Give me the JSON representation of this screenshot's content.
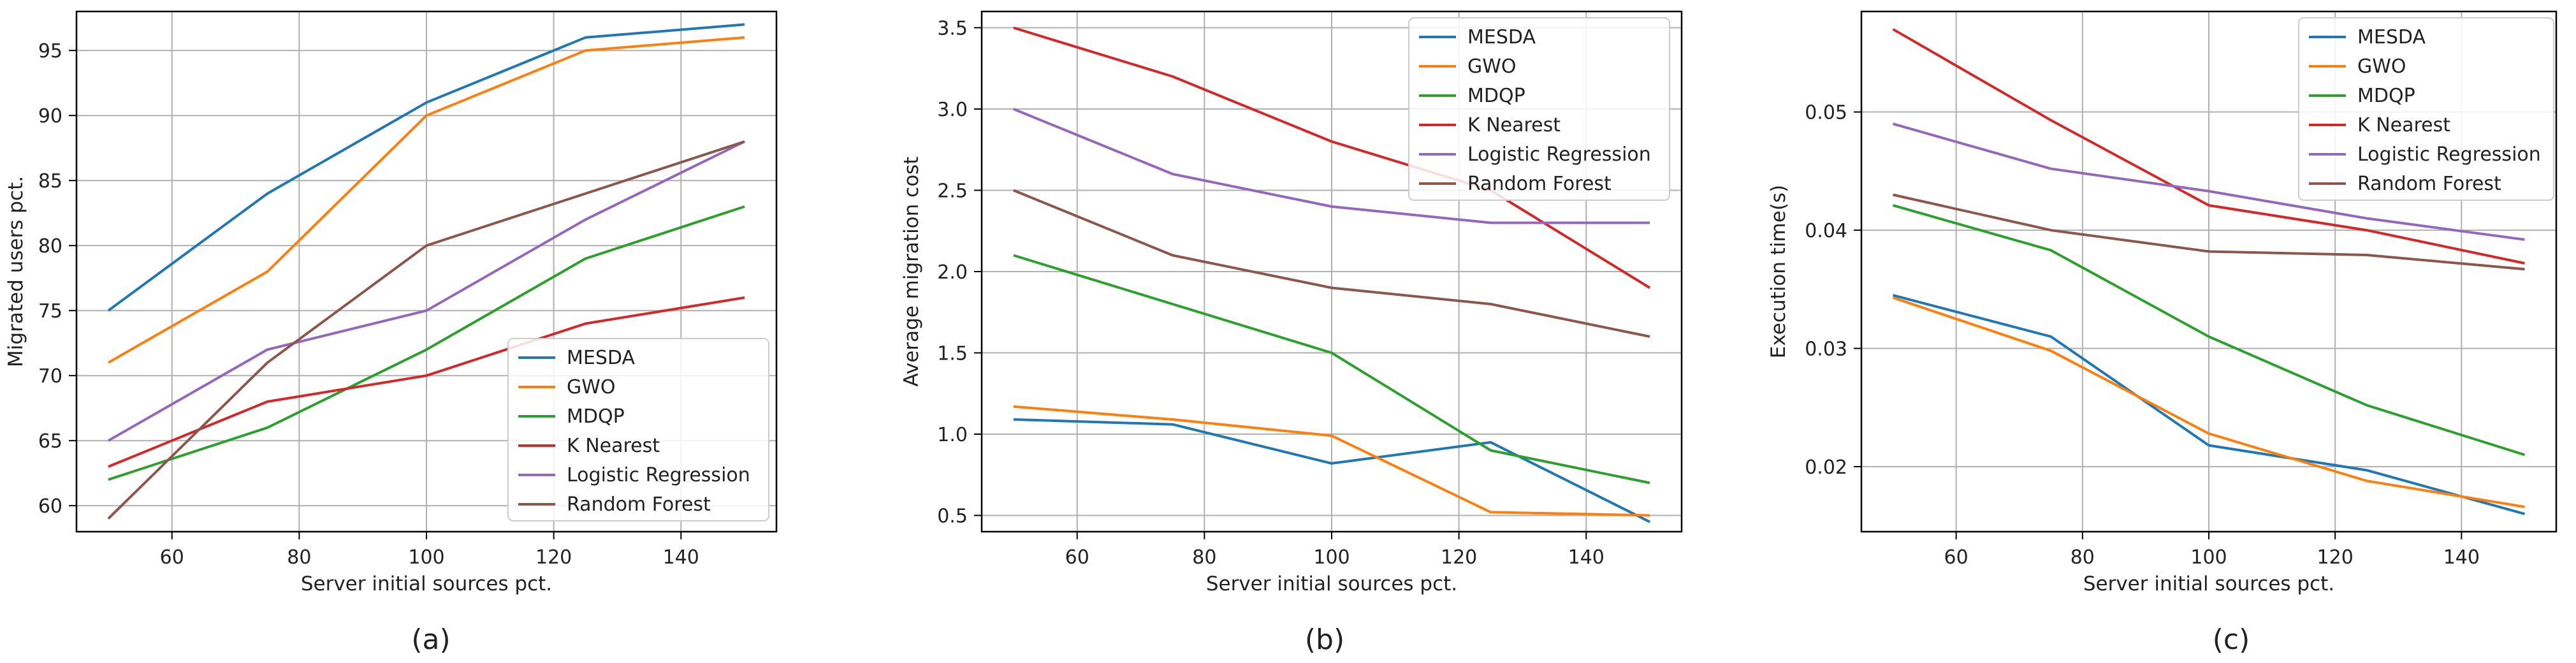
{
  "chart_data": [
    {
      "type": "line",
      "caption": "(a)",
      "xlabel": "Server initial sources pct.",
      "ylabel": "Migrated users pct.",
      "xlim": [
        45,
        155
      ],
      "ylim": [
        58,
        98
      ],
      "xticks": [
        60,
        80,
        100,
        120,
        140
      ],
      "yticks": [
        60,
        65,
        70,
        75,
        80,
        85,
        90,
        95
      ],
      "ytick_labels": [
        "60",
        "65",
        "70",
        "75",
        "80",
        "85",
        "90",
        "95"
      ],
      "grid": true,
      "legend_position": "lower-right",
      "x": [
        50,
        75,
        100,
        125,
        150
      ],
      "series": [
        {
          "name": "MESDA",
          "color": "#1f77b4",
          "values": [
            75,
            84,
            91,
            96,
            97
          ]
        },
        {
          "name": "GWO",
          "color": "#ff7f0e",
          "values": [
            71,
            78,
            90,
            95,
            96
          ]
        },
        {
          "name": "MDQP",
          "color": "#2ca02c",
          "values": [
            62,
            66,
            72,
            79,
            83
          ]
        },
        {
          "name": "K Nearest",
          "color": "#d62728",
          "values": [
            63,
            68,
            70,
            74,
            76
          ]
        },
        {
          "name": "Logistic Regression",
          "color": "#9467bd",
          "values": [
            65,
            72,
            75,
            82,
            88
          ]
        },
        {
          "name": "Random Forest",
          "color": "#8c564b",
          "values": [
            59,
            71,
            80,
            84,
            88
          ]
        }
      ]
    },
    {
      "type": "line",
      "caption": "(b)",
      "xlabel": "Server initial sources pct.",
      "ylabel": "Average migration cost",
      "xlim": [
        45,
        155
      ],
      "ylim": [
        0.4,
        3.6
      ],
      "xticks": [
        60,
        80,
        100,
        120,
        140
      ],
      "yticks": [
        0.5,
        1.0,
        1.5,
        2.0,
        2.5,
        3.0,
        3.5
      ],
      "ytick_labels": [
        "0.5",
        "1.0",
        "1.5",
        "2.0",
        "2.5",
        "3.0",
        "3.5"
      ],
      "grid": true,
      "legend_position": "top-right",
      "x": [
        50,
        75,
        100,
        125,
        150
      ],
      "series": [
        {
          "name": "MESDA",
          "color": "#1f77b4",
          "values": [
            1.09,
            1.06,
            0.82,
            0.95,
            0.46
          ]
        },
        {
          "name": "GWO",
          "color": "#ff7f0e",
          "values": [
            1.17,
            1.09,
            0.99,
            0.52,
            0.5
          ]
        },
        {
          "name": "MDQP",
          "color": "#2ca02c",
          "values": [
            2.1,
            1.8,
            1.5,
            0.9,
            0.7
          ]
        },
        {
          "name": "K Nearest",
          "color": "#d62728",
          "values": [
            3.5,
            3.2,
            2.8,
            2.5,
            1.9
          ]
        },
        {
          "name": "Logistic Regression",
          "color": "#9467bd",
          "values": [
            3.0,
            2.6,
            2.4,
            2.3,
            2.3
          ]
        },
        {
          "name": "Random Forest",
          "color": "#8c564b",
          "values": [
            2.5,
            2.1,
            1.9,
            1.8,
            1.6
          ]
        }
      ]
    },
    {
      "type": "line",
      "caption": "(c)",
      "xlabel": "Server initial sources pct.",
      "ylabel": "Execution time(s)",
      "xlim": [
        45,
        155
      ],
      "ylim": [
        0.0145,
        0.0585
      ],
      "xticks": [
        60,
        80,
        100,
        120,
        140
      ],
      "yticks": [
        0.02,
        0.03,
        0.04,
        0.05
      ],
      "ytick_labels": [
        "0.02",
        "0.03",
        "0.04",
        "0.05"
      ],
      "grid": true,
      "legend_position": "top-right",
      "x": [
        50,
        75,
        100,
        125,
        150
      ],
      "series": [
        {
          "name": "MESDA",
          "color": "#1f77b4",
          "values": [
            0.0345,
            0.031,
            0.0218,
            0.0197,
            0.016
          ]
        },
        {
          "name": "GWO",
          "color": "#ff7f0e",
          "values": [
            0.0343,
            0.0298,
            0.0228,
            0.0188,
            0.0166
          ]
        },
        {
          "name": "MDQP",
          "color": "#2ca02c",
          "values": [
            0.0421,
            0.0383,
            0.031,
            0.0252,
            0.021
          ]
        },
        {
          "name": "K Nearest",
          "color": "#d62728",
          "values": [
            0.057,
            0.0493,
            0.0421,
            0.04,
            0.0372
          ]
        },
        {
          "name": "Logistic Regression",
          "color": "#9467bd",
          "values": [
            0.049,
            0.0452,
            0.0433,
            0.041,
            0.0392
          ]
        },
        {
          "name": "Random Forest",
          "color": "#8c564b",
          "values": [
            0.043,
            0.04,
            0.0382,
            0.0379,
            0.0367
          ]
        }
      ]
    }
  ]
}
